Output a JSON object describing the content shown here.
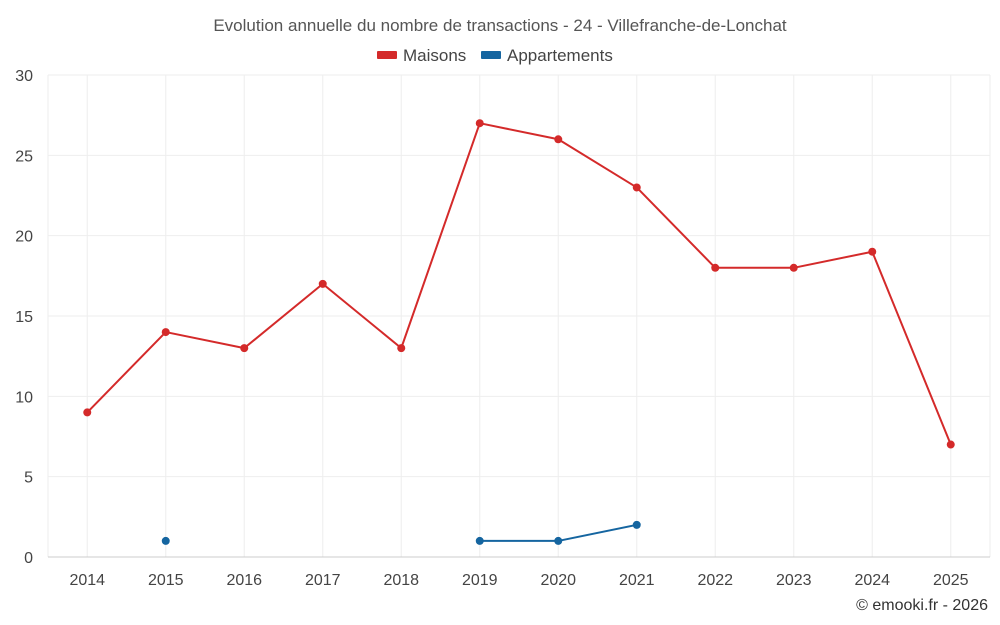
{
  "chart_data": {
    "type": "line",
    "title": "Evolution annuelle du nombre de transactions - 24 - Villefranche-de-Lonchat",
    "categories": [
      "2014",
      "2015",
      "2016",
      "2017",
      "2018",
      "2019",
      "2020",
      "2021",
      "2022",
      "2023",
      "2024",
      "2025"
    ],
    "ylim": [
      0,
      30
    ],
    "yticks": [
      0,
      5,
      10,
      15,
      20,
      25,
      30
    ],
    "grid": true,
    "legend_position": "top-center",
    "series": [
      {
        "name": "Maisons",
        "color": "#d42a2a",
        "values": [
          9,
          14,
          13,
          17,
          13,
          27,
          26,
          23,
          18,
          18,
          19,
          7
        ]
      },
      {
        "name": "Appartements",
        "color": "#1565a0",
        "values": [
          null,
          1,
          null,
          null,
          null,
          1,
          1,
          2,
          null,
          null,
          null,
          null
        ]
      }
    ]
  },
  "credit": "© emooki.fr - 2026"
}
